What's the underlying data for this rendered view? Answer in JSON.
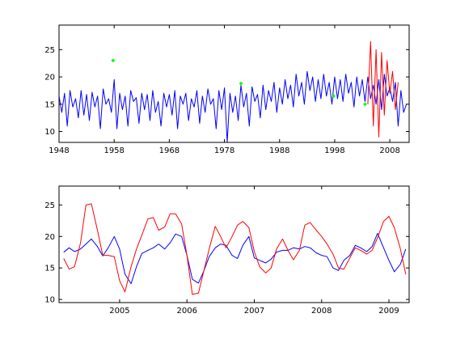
{
  "chart_data": [
    {
      "type": "line",
      "title": "",
      "xlabel": "",
      "ylabel": "",
      "xlim": [
        1948,
        2011.5
      ],
      "ylim": [
        8,
        29.5
      ],
      "grid": false,
      "x_ticks": [
        1948,
        1958,
        1968,
        1978,
        1988,
        1998,
        2008
      ],
      "y_ticks": [
        10,
        15,
        20,
        25
      ],
      "series": [
        {
          "color": "#0000ff",
          "style": "line",
          "x": [
            1948.0,
            1948.5,
            1949.0,
            1949.5,
            1950.0,
            1950.5,
            1951.0,
            1951.5,
            1952.0,
            1952.5,
            1953.0,
            1953.5,
            1954.0,
            1954.5,
            1955.0,
            1955.5,
            1956.0,
            1956.5,
            1957.0,
            1957.5,
            1958.0,
            1958.5,
            1959.0,
            1959.5,
            1960.0,
            1960.5,
            1961.0,
            1961.5,
            1962.0,
            1962.5,
            1963.0,
            1963.5,
            1964.0,
            1964.5,
            1965.0,
            1965.5,
            1966.0,
            1966.5,
            1967.0,
            1967.5,
            1968.0,
            1968.5,
            1969.0,
            1969.5,
            1970.0,
            1970.5,
            1971.0,
            1971.5,
            1972.0,
            1972.5,
            1973.0,
            1973.5,
            1974.0,
            1974.5,
            1975.0,
            1975.5,
            1976.0,
            1976.5,
            1977.0,
            1977.5,
            1978.0,
            1978.5,
            1979.0,
            1979.5,
            1980.0,
            1980.5,
            1981.0,
            1981.5,
            1982.0,
            1982.5,
            1983.0,
            1983.5,
            1984.0,
            1984.5,
            1985.0,
            1985.5,
            1986.0,
            1986.5,
            1987.0,
            1987.5,
            1988.0,
            1988.5,
            1989.0,
            1989.5,
            1990.0,
            1990.5,
            1991.0,
            1991.5,
            1992.0,
            1992.5,
            1993.0,
            1993.5,
            1994.0,
            1994.5,
            1995.0,
            1995.5,
            1996.0,
            1996.5,
            1997.0,
            1997.5,
            1998.0,
            1998.5,
            1999.0,
            1999.5,
            2000.0,
            2000.5,
            2001.0,
            2001.5,
            2002.0,
            2002.5,
            2003.0,
            2003.5,
            2004.0,
            2004.5,
            2005.0,
            2005.5,
            2006.0,
            2006.5,
            2007.0,
            2007.5,
            2008.0,
            2008.5,
            2009.0,
            2009.5,
            2010.0,
            2010.5,
            2011.0
          ],
          "y": [
            16.5,
            13.5,
            17.0,
            11.0,
            17.5,
            14.5,
            16.0,
            12.5,
            17.5,
            13.0,
            16.8,
            12.0,
            17.2,
            14.5,
            16.5,
            10.5,
            17.8,
            15.0,
            16.0,
            13.5,
            19.5,
            10.5,
            17.0,
            14.0,
            16.5,
            11.0,
            17.5,
            15.5,
            16.2,
            11.5,
            17.0,
            14.0,
            16.8,
            12.0,
            17.5,
            13.5,
            15.5,
            11.0,
            17.0,
            14.5,
            16.8,
            13.0,
            17.5,
            10.5,
            16.5,
            15.0,
            17.0,
            12.0,
            16.0,
            14.5,
            17.5,
            11.5,
            16.5,
            13.5,
            17.8,
            15.0,
            16.0,
            10.5,
            17.5,
            14.0,
            18.0,
            8.0,
            17.0,
            13.5,
            16.5,
            12.0,
            18.5,
            14.5,
            17.0,
            11.0,
            18.2,
            15.5,
            16.8,
            12.5,
            18.5,
            14.0,
            17.5,
            15.5,
            19.0,
            13.5,
            18.0,
            15.0,
            19.5,
            16.0,
            18.5,
            14.5,
            20.5,
            16.5,
            19.0,
            15.0,
            21.0,
            17.5,
            20.0,
            15.5,
            19.5,
            16.0,
            20.5,
            16.5,
            19.0,
            15.0,
            20.0,
            16.0,
            19.5,
            15.5,
            20.5,
            17.0,
            19.0,
            14.5,
            20.0,
            16.5,
            19.5,
            15.5,
            20.0,
            16.0,
            18.5,
            15.0,
            19.5,
            14.0,
            20.5,
            16.5,
            18.0,
            15.5,
            19.0,
            11.0,
            17.5,
            13.5,
            15.0
          ]
        },
        {
          "color": "#ff0000",
          "style": "line",
          "x": [
            2004.0,
            2004.5,
            2005.0,
            2005.5,
            2006.0,
            2006.5,
            2007.0,
            2007.5,
            2008.0,
            2008.5,
            2009.0,
            2009.5
          ],
          "y": [
            15.0,
            26.5,
            11.0,
            25.0,
            9.0,
            24.5,
            13.0,
            23.0,
            17.0,
            21.0,
            14.0,
            19.0
          ]
        },
        {
          "color": "#00ff00",
          "style": "markers",
          "x": [
            1957.8,
            1981.0,
            1997.8,
            2003.5
          ],
          "y": [
            23.0,
            18.8,
            16.5,
            15.0
          ]
        }
      ]
    },
    {
      "type": "line",
      "title": "",
      "xlabel": "",
      "ylabel": "",
      "xlim": [
        2004.1,
        2009.3
      ],
      "ylim": [
        9.5,
        28.0
      ],
      "grid": false,
      "x_ticks": [
        2005,
        2006,
        2007,
        2008,
        2009
      ],
      "y_ticks": [
        10,
        15,
        20,
        25
      ],
      "series": [
        {
          "color": "#0000ff",
          "style": "line",
          "x": [
            2004.17,
            2004.25,
            2004.33,
            2004.42,
            2004.5,
            2004.58,
            2004.67,
            2004.75,
            2004.83,
            2004.92,
            2005.0,
            2005.08,
            2005.17,
            2005.25,
            2005.33,
            2005.42,
            2005.5,
            2005.58,
            2005.67,
            2005.75,
            2005.83,
            2005.92,
            2006.0,
            2006.08,
            2006.17,
            2006.25,
            2006.33,
            2006.42,
            2006.5,
            2006.58,
            2006.67,
            2006.75,
            2006.83,
            2006.92,
            2007.0,
            2007.08,
            2007.17,
            2007.25,
            2007.33,
            2007.42,
            2007.5,
            2007.58,
            2007.67,
            2007.75,
            2007.83,
            2007.92,
            2008.0,
            2008.08,
            2008.17,
            2008.25,
            2008.33,
            2008.42,
            2008.5,
            2008.58,
            2008.67,
            2008.75,
            2008.83,
            2008.92,
            2009.0,
            2009.08,
            2009.17,
            2009.25
          ],
          "y": [
            17.5,
            18.2,
            17.6,
            18.0,
            18.8,
            19.6,
            18.4,
            16.9,
            18.2,
            20.0,
            18.0,
            14.0,
            12.5,
            15.2,
            17.3,
            17.8,
            18.2,
            18.8,
            18.0,
            19.0,
            20.4,
            20.0,
            17.0,
            13.2,
            12.6,
            14.5,
            16.8,
            18.2,
            18.8,
            18.6,
            17.0,
            16.5,
            18.6,
            20.0,
            16.6,
            16.2,
            15.8,
            16.4,
            17.5,
            17.8,
            17.8,
            18.2,
            18.0,
            18.4,
            18.2,
            17.4,
            17.0,
            16.8,
            15.0,
            14.6,
            16.2,
            17.0,
            18.6,
            18.2,
            17.6,
            18.4,
            20.5,
            18.2,
            16.2,
            14.4,
            15.6,
            18.0
          ]
        },
        {
          "color": "#ff0000",
          "style": "line",
          "x": [
            2004.17,
            2004.25,
            2004.33,
            2004.42,
            2004.5,
            2004.58,
            2004.67,
            2004.75,
            2004.83,
            2004.92,
            2005.0,
            2005.08,
            2005.17,
            2005.25,
            2005.33,
            2005.42,
            2005.5,
            2005.58,
            2005.67,
            2005.75,
            2005.83,
            2005.92,
            2006.0,
            2006.08,
            2006.17,
            2006.25,
            2006.33,
            2006.42,
            2006.5,
            2006.58,
            2006.67,
            2006.75,
            2006.83,
            2006.92,
            2007.0,
            2007.08,
            2007.17,
            2007.25,
            2007.33,
            2007.42,
            2007.5,
            2007.58,
            2007.67,
            2007.75,
            2007.83,
            2007.92,
            2008.0,
            2008.08,
            2008.17,
            2008.25,
            2008.33,
            2008.42,
            2008.5,
            2008.58,
            2008.67,
            2008.75,
            2008.83,
            2008.92,
            2009.0,
            2009.08,
            2009.17,
            2009.25
          ],
          "y": [
            16.5,
            14.8,
            15.2,
            19.0,
            25.0,
            25.2,
            21.0,
            17.0,
            17.0,
            16.8,
            13.0,
            11.2,
            15.2,
            18.0,
            20.2,
            22.8,
            23.0,
            21.0,
            21.5,
            23.6,
            23.6,
            22.0,
            17.0,
            10.8,
            11.0,
            14.5,
            18.0,
            21.6,
            20.0,
            18.2,
            20.0,
            21.8,
            22.4,
            21.4,
            17.6,
            15.2,
            14.2,
            15.0,
            18.0,
            19.6,
            17.8,
            16.3,
            17.8,
            21.8,
            22.2,
            21.0,
            20.0,
            18.8,
            17.2,
            15.0,
            14.8,
            16.6,
            18.2,
            17.8,
            17.2,
            17.8,
            19.8,
            22.4,
            23.2,
            21.4,
            18.0,
            14.0
          ]
        }
      ]
    }
  ]
}
